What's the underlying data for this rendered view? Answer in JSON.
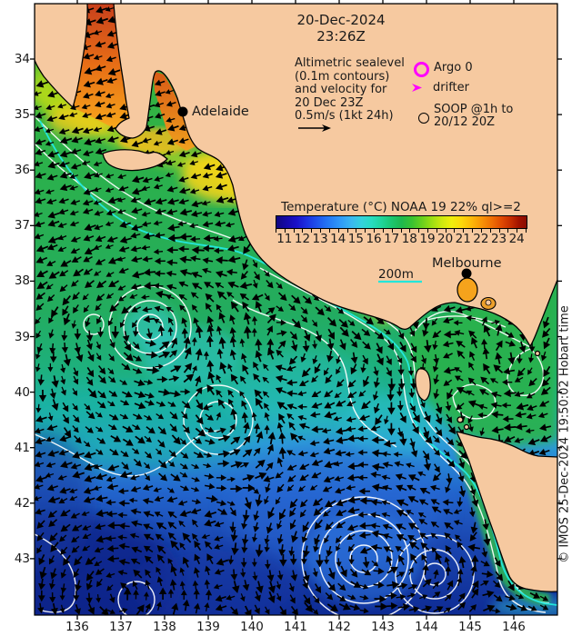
{
  "header": {
    "date": "20-Dec-2024",
    "time": "23:26Z"
  },
  "info": {
    "lines": [
      "Altimetric sealevel",
      "(0.1m contours)",
      "and velocity for",
      "20 Dec 23Z",
      "0.5m/s (1kt 24h)"
    ]
  },
  "legend": {
    "argo_label": "Argo 0",
    "drifter_label": "drifter",
    "soop_line1": "SOOP @1h to",
    "soop_line2": "20/12 20Z"
  },
  "colorbar": {
    "title": "Temperature (°C) NOAA 19 22% ql>=2",
    "tick_labels": [
      11,
      12,
      13,
      14,
      15,
      16,
      17,
      18,
      19,
      20,
      21,
      22,
      23,
      24
    ],
    "value_range": [
      10.5,
      24.5
    ]
  },
  "map": {
    "cities": [
      {
        "name": "Adelaide"
      },
      {
        "name": "Melbourne"
      }
    ],
    "depth_label": "200m",
    "lon_range": [
      135,
      147
    ],
    "lat_range": [
      33,
      44
    ]
  },
  "axes": {
    "lon_ticks": [
      136,
      137,
      138,
      139,
      140,
      141,
      142,
      143,
      144,
      145,
      146
    ],
    "lat_ticks": [
      34,
      35,
      36,
      37,
      38,
      39,
      40,
      41,
      42,
      43
    ]
  },
  "copyright": "© IMOS 25-Dec-2024 19:50:02 Hobart time",
  "colors": {
    "land": "#f6c9a0",
    "highlight_magenta": "#ff00ff",
    "isobath_cyan": "#23e6da",
    "contour_white": "#ffffff"
  }
}
